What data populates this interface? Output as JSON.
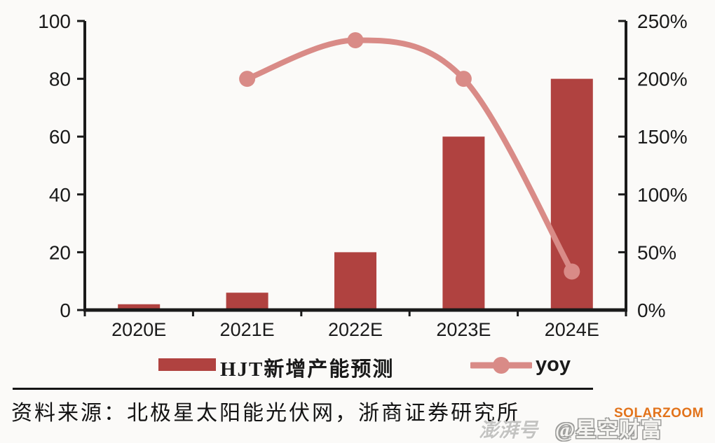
{
  "chart_data": {
    "type": "bar",
    "subtype": "combo-bar-line-dual-axis",
    "categories": [
      "2020E",
      "2021E",
      "2022E",
      "2023E",
      "2024E"
    ],
    "series": [
      {
        "name": "HJT新增产能预测",
        "type": "bar",
        "axis": "left",
        "values": [
          2,
          6,
          20,
          60,
          80
        ],
        "color": "#B04240"
      },
      {
        "name": "yoy",
        "type": "line",
        "axis": "right",
        "unit": "%",
        "values": [
          null,
          200,
          233.33,
          200,
          33.33
        ],
        "color": "#D98B87",
        "marker": "circle"
      }
    ],
    "left_axis": {
      "min": 0,
      "max": 100,
      "ticks": [
        "100",
        "80",
        "60",
        "40",
        "20",
        "0"
      ]
    },
    "right_axis": {
      "min": 0,
      "max": 250,
      "ticks": [
        "250%",
        "200%",
        "150%",
        "100%",
        "50%",
        "0%"
      ]
    },
    "grid": false,
    "title": "",
    "legend_position": "bottom"
  },
  "legend": {
    "bar_label": "HJT新增产能预测",
    "line_label": "yoy"
  },
  "footer": {
    "source": "资料来源：北极星太阳能光伏网，浙商证券研究所"
  },
  "watermarks": {
    "solarzoom": "SOLARZOOM",
    "pengpai": "澎湃号",
    "account": "@星空财富"
  },
  "colors": {
    "bar": "#B04240",
    "line": "#D98B87",
    "axis": "#1a1a1a",
    "background": "#FBFAF8",
    "solarzoom_orange": "#E2731B"
  }
}
